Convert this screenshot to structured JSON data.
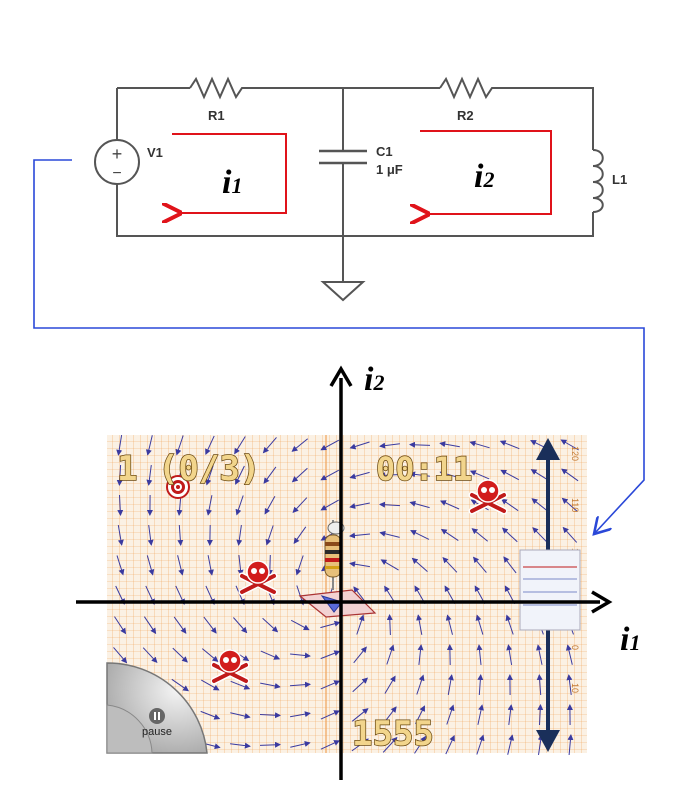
{
  "circuit": {
    "source": {
      "label": "V1",
      "plus": "+",
      "minus": "−"
    },
    "r1": {
      "label": "R1"
    },
    "r2": {
      "label": "R2"
    },
    "c1": {
      "label": "C1",
      "value": "1 μF"
    },
    "l1": {
      "label": "L1"
    },
    "loop1": {
      "symbol": "i",
      "subscript": "1"
    },
    "loop2": {
      "symbol": "i",
      "subscript": "2"
    }
  },
  "game": {
    "level_text": "1 (0/3)",
    "timer": "00:11",
    "score": "1555",
    "pause_label": "pause",
    "grid_numbers": [
      "0",
      "10",
      "120",
      "110",
      "100"
    ]
  },
  "axes": {
    "x": {
      "symbol": "i",
      "subscript": "1"
    },
    "y": {
      "symbol": "i",
      "subscript": "2"
    }
  },
  "colors": {
    "loop": "#e0131a",
    "connector": "#2a48d8",
    "wire": "#555555",
    "arrow_field": "#3a3aa0",
    "grid": "#f0a35a",
    "hud_text": "#f2d58c"
  }
}
